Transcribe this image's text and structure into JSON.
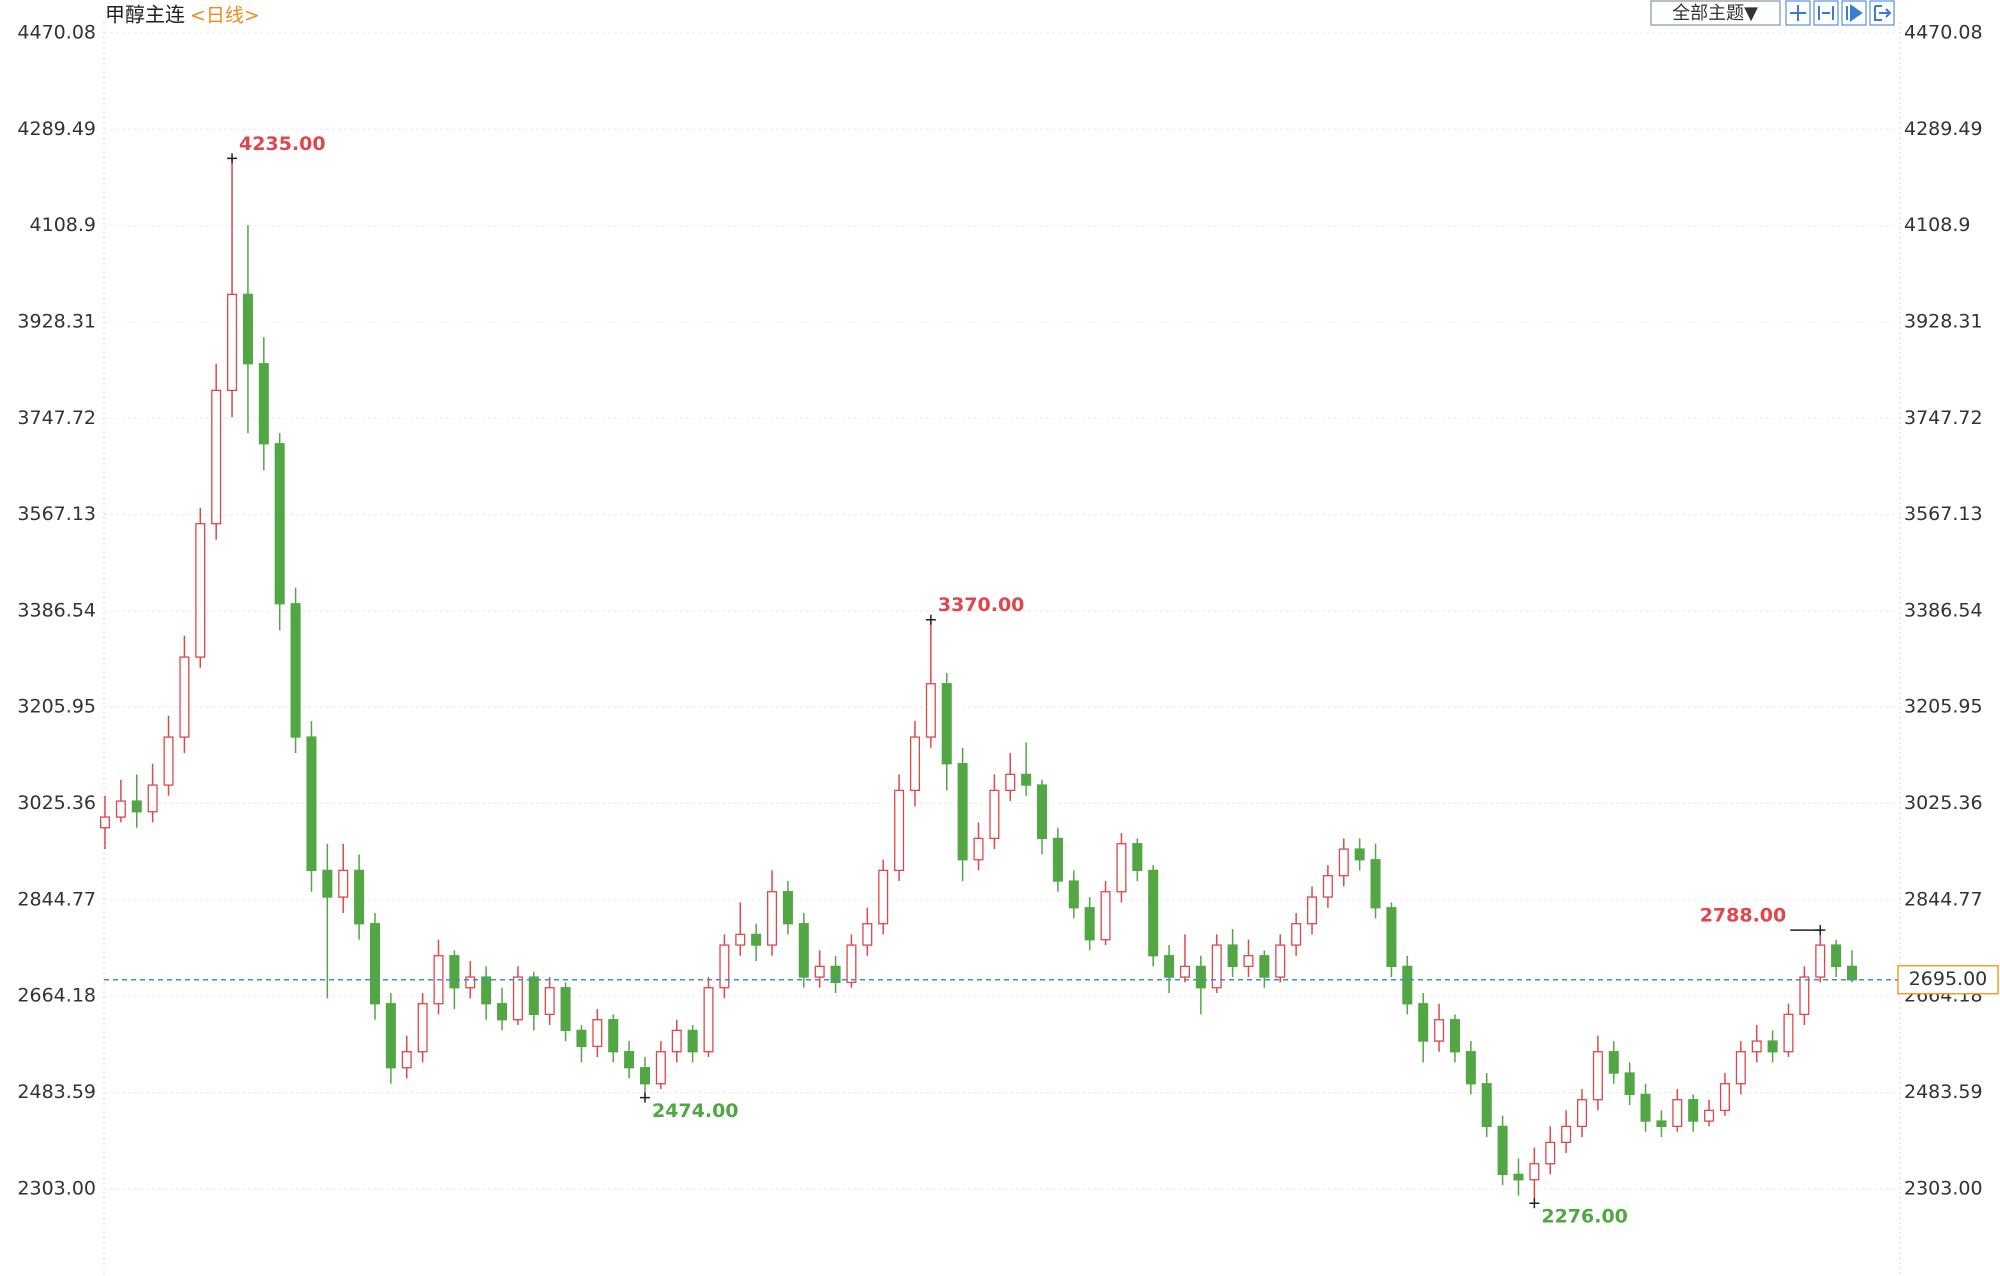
{
  "chart_data": {
    "type": "candlestick",
    "title": "甲醇主连",
    "period": "<日线>",
    "theme_button": "全部主题▼",
    "ylim": [
      2150,
      4490
    ],
    "yticks": [
      {
        "value": 2303,
        "label": "2303.00"
      },
      2483.59,
      2664.18,
      2844.77,
      3025.36,
      3205.95,
      3386.54,
      3567.13,
      3747.72,
      3928.31,
      4108.9,
      4289.49,
      4470.08
    ],
    "grid": true,
    "up_color": "#e0474c",
    "down_color": "#52a744",
    "last": {
      "value": 2695,
      "label": "2695.00"
    },
    "annotations": [
      {
        "value": 4235,
        "label": "4235.00"
      },
      {
        "value": 2474,
        "label": "2474.00"
      },
      {
        "value": 3370,
        "label": "3370.00"
      },
      {
        "value": 2276,
        "label": "2276.00"
      },
      {
        "value": 2788,
        "label": "2788.00"
      }
    ],
    "candles": [
      [
        2980,
        3040,
        2940,
        3000
      ],
      [
        3000,
        3070,
        2990,
        3030
      ],
      [
        3030,
        3080,
        2980,
        3010
      ],
      [
        3010,
        3100,
        2990,
        3060
      ],
      [
        3060,
        3190,
        3040,
        3150
      ],
      [
        3150,
        3340,
        3120,
        3300
      ],
      [
        3300,
        3580,
        3280,
        3550
      ],
      [
        3550,
        3850,
        3520,
        3800
      ],
      [
        3800,
        4235,
        3750,
        3980
      ],
      [
        3980,
        4110,
        3720,
        3850
      ],
      [
        3850,
        3900,
        3650,
        3700
      ],
      [
        3700,
        3720,
        3350,
        3400
      ],
      [
        3400,
        3430,
        3120,
        3150
      ],
      [
        3150,
        3180,
        2860,
        2900
      ],
      [
        2900,
        2950,
        2660,
        2850
      ],
      [
        2850,
        2950,
        2820,
        2900
      ],
      [
        2900,
        2930,
        2770,
        2800
      ],
      [
        2800,
        2820,
        2620,
        2650
      ],
      [
        2650,
        2670,
        2500,
        2530
      ],
      [
        2530,
        2590,
        2510,
        2560
      ],
      [
        2560,
        2670,
        2540,
        2650
      ],
      [
        2650,
        2770,
        2630,
        2740
      ],
      [
        2740,
        2750,
        2640,
        2680
      ],
      [
        2680,
        2730,
        2660,
        2700
      ],
      [
        2700,
        2720,
        2620,
        2650
      ],
      [
        2650,
        2680,
        2600,
        2620
      ],
      [
        2620,
        2720,
        2610,
        2700
      ],
      [
        2700,
        2710,
        2600,
        2630
      ],
      [
        2630,
        2700,
        2610,
        2680
      ],
      [
        2680,
        2690,
        2580,
        2600
      ],
      [
        2600,
        2610,
        2540,
        2570
      ],
      [
        2570,
        2640,
        2550,
        2620
      ],
      [
        2620,
        2630,
        2540,
        2560
      ],
      [
        2560,
        2580,
        2510,
        2530
      ],
      [
        2530,
        2550,
        2474,
        2500
      ],
      [
        2500,
        2580,
        2490,
        2560
      ],
      [
        2560,
        2620,
        2540,
        2600
      ],
      [
        2600,
        2610,
        2540,
        2560
      ],
      [
        2560,
        2700,
        2550,
        2680
      ],
      [
        2680,
        2780,
        2660,
        2760
      ],
      [
        2760,
        2840,
        2740,
        2780
      ],
      [
        2780,
        2800,
        2730,
        2760
      ],
      [
        2760,
        2900,
        2740,
        2860
      ],
      [
        2860,
        2880,
        2780,
        2800
      ],
      [
        2800,
        2820,
        2680,
        2700
      ],
      [
        2700,
        2750,
        2680,
        2720
      ],
      [
        2720,
        2740,
        2670,
        2690
      ],
      [
        2690,
        2780,
        2680,
        2760
      ],
      [
        2760,
        2830,
        2740,
        2800
      ],
      [
        2800,
        2920,
        2780,
        2900
      ],
      [
        2900,
        3080,
        2880,
        3050
      ],
      [
        3050,
        3180,
        3020,
        3150
      ],
      [
        3150,
        3370,
        3130,
        3250
      ],
      [
        3250,
        3270,
        3050,
        3100
      ],
      [
        3100,
        3130,
        2880,
        2920
      ],
      [
        2920,
        2990,
        2900,
        2960
      ],
      [
        2960,
        3080,
        2940,
        3050
      ],
      [
        3050,
        3120,
        3030,
        3080
      ],
      [
        3080,
        3140,
        3040,
        3060
      ],
      [
        3060,
        3070,
        2930,
        2960
      ],
      [
        2960,
        2980,
        2860,
        2880
      ],
      [
        2880,
        2900,
        2810,
        2830
      ],
      [
        2830,
        2850,
        2750,
        2770
      ],
      [
        2770,
        2880,
        2760,
        2860
      ],
      [
        2860,
        2970,
        2840,
        2950
      ],
      [
        2950,
        2960,
        2880,
        2900
      ],
      [
        2900,
        2910,
        2720,
        2740
      ],
      [
        2740,
        2760,
        2670,
        2700
      ],
      [
        2700,
        2780,
        2690,
        2720
      ],
      [
        2720,
        2740,
        2630,
        2680
      ],
      [
        2680,
        2780,
        2670,
        2760
      ],
      [
        2760,
        2790,
        2700,
        2720
      ],
      [
        2720,
        2770,
        2700,
        2740
      ],
      [
        2740,
        2750,
        2680,
        2700
      ],
      [
        2700,
        2780,
        2690,
        2760
      ],
      [
        2760,
        2820,
        2740,
        2800
      ],
      [
        2800,
        2870,
        2780,
        2850
      ],
      [
        2850,
        2910,
        2830,
        2890
      ],
      [
        2890,
        2960,
        2870,
        2940
      ],
      [
        2940,
        2960,
        2900,
        2920
      ],
      [
        2920,
        2950,
        2810,
        2830
      ],
      [
        2830,
        2840,
        2700,
        2720
      ],
      [
        2720,
        2740,
        2630,
        2650
      ],
      [
        2650,
        2670,
        2540,
        2580
      ],
      [
        2580,
        2650,
        2560,
        2620
      ],
      [
        2620,
        2630,
        2540,
        2560
      ],
      [
        2560,
        2580,
        2480,
        2500
      ],
      [
        2500,
        2520,
        2400,
        2420
      ],
      [
        2420,
        2440,
        2310,
        2330
      ],
      [
        2330,
        2360,
        2290,
        2320
      ],
      [
        2320,
        2380,
        2276,
        2350
      ],
      [
        2350,
        2420,
        2330,
        2390
      ],
      [
        2390,
        2450,
        2370,
        2420
      ],
      [
        2420,
        2490,
        2400,
        2470
      ],
      [
        2470,
        2590,
        2450,
        2560
      ],
      [
        2560,
        2580,
        2500,
        2520
      ],
      [
        2520,
        2540,
        2460,
        2480
      ],
      [
        2480,
        2500,
        2410,
        2430
      ],
      [
        2430,
        2450,
        2400,
        2420
      ],
      [
        2420,
        2490,
        2410,
        2470
      ],
      [
        2470,
        2480,
        2410,
        2430
      ],
      [
        2430,
        2470,
        2420,
        2450
      ],
      [
        2450,
        2520,
        2440,
        2500
      ],
      [
        2500,
        2580,
        2480,
        2560
      ],
      [
        2560,
        2610,
        2540,
        2580
      ],
      [
        2580,
        2600,
        2540,
        2560
      ],
      [
        2560,
        2650,
        2550,
        2630
      ],
      [
        2630,
        2720,
        2610,
        2700
      ],
      [
        2700,
        2788,
        2690,
        2760
      ],
      [
        2760,
        2770,
        2700,
        2720
      ],
      [
        2720,
        2750,
        2690,
        2695
      ]
    ]
  }
}
